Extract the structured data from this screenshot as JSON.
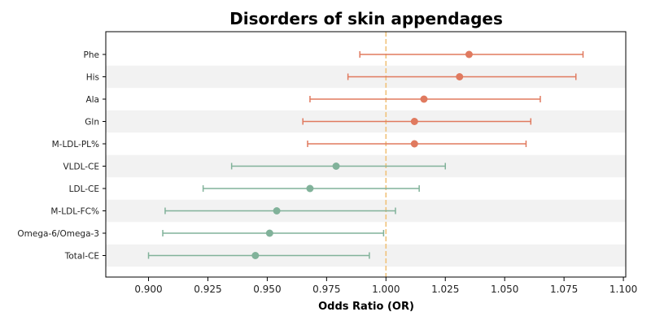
{
  "chart_data": {
    "type": "scatter",
    "subtype": "forest-plot",
    "title": "Disorders of skin appendages",
    "xlabel": "Odds Ratio (OR)",
    "ylabel": "",
    "xlim": [
      0.882,
      1.101
    ],
    "x_ticks": [
      "0.900",
      "0.925",
      "0.950",
      "0.975",
      "1.000",
      "1.025",
      "1.050",
      "1.075",
      "1.100"
    ],
    "reference_line": 1.0,
    "reference_color": "#f0c27a",
    "grid": false,
    "row_banding": true,
    "colors": {
      "risk": "#e07a5f",
      "protective": "#81b29a",
      "band": "#f2f2f2"
    },
    "categories": [
      "Phe",
      "His",
      "Ala",
      "Gln",
      "M-LDL-PL%",
      "VLDL-CE",
      "LDL-CE",
      "M-LDL-FC%",
      "Omega-6/Omega-3",
      "Total-CE"
    ],
    "or": [
      1.035,
      1.031,
      1.016,
      1.012,
      1.012,
      0.979,
      0.968,
      0.954,
      0.951,
      0.945
    ],
    "lower": [
      0.989,
      0.984,
      0.968,
      0.965,
      0.967,
      0.935,
      0.923,
      0.907,
      0.906,
      0.9
    ],
    "upper": [
      1.083,
      1.08,
      1.065,
      1.061,
      1.059,
      1.025,
      1.014,
      1.004,
      0.999,
      0.993
    ],
    "group": [
      "risk",
      "risk",
      "risk",
      "risk",
      "risk",
      "protective",
      "protective",
      "protective",
      "protective",
      "protective"
    ]
  }
}
